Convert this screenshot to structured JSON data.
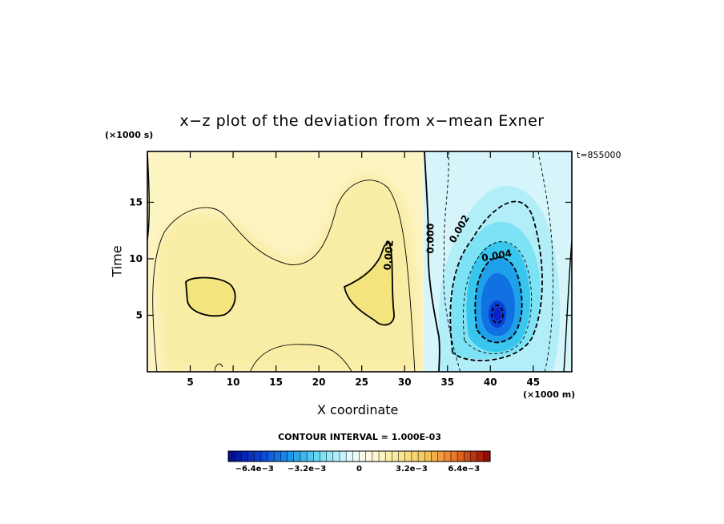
{
  "chart_data": {
    "type": "heatmap",
    "title": "x−z plot of the deviation from x−mean Exner",
    "xlabel": "X coordinate",
    "ylabel": "Time",
    "x_unit": "(×1000 m)",
    "y_unit": "(×1000 s)",
    "annotation": "t=855000",
    "xlim": [
      0,
      49.5
    ],
    "ylim": [
      0,
      19.5
    ],
    "x_ticks": [
      5,
      10,
      15,
      20,
      25,
      30,
      35,
      40,
      45
    ],
    "y_ticks": [
      5,
      10,
      15
    ],
    "contour_interval_label": "CONTOUR INTERVAL = 1.000E-03",
    "contour_labels": [
      {
        "text": "0.002",
        "x": 28.5,
        "y": 10.3,
        "angle": -85
      },
      {
        "text": "0.000",
        "x": 33.4,
        "y": 11.8,
        "angle": -90
      },
      {
        "text": "0.002",
        "x": 36.7,
        "y": 12.5,
        "angle": -60
      },
      {
        "text": "0.004",
        "x": 40.8,
        "y": 10.0,
        "angle": -10
      }
    ],
    "field_features": [
      {
        "kind": "positive max",
        "x": 5.5,
        "y": 7.0,
        "value": 0.0025
      },
      {
        "kind": "positive max",
        "x": 26.5,
        "y": 7.0,
        "value": 0.0025
      },
      {
        "kind": "negative min",
        "x": 41.2,
        "y": 5.3,
        "value": -0.0065
      }
    ],
    "colorbar": {
      "min": -0.008,
      "max": 0.008,
      "step": 0.0004,
      "tick_labels": [
        "−6.4e−3",
        "−3.2e−3",
        "0",
        "3.2e−3",
        "6.4e−3"
      ],
      "tick_values": [
        -0.0064,
        -0.0032,
        0,
        0.0032,
        0.0064
      ]
    }
  }
}
